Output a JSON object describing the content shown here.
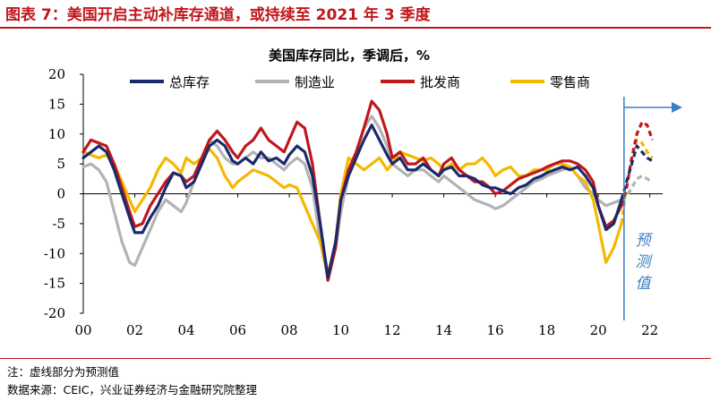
{
  "figure": {
    "title": "图表 7：美国开启主动补库存通道，或持续至 2021 年 3 季度",
    "note": "注：虚线部分为预测值",
    "source": "数据来源：CEIC，兴业证券经济与金融研究院整理"
  },
  "chart_data": {
    "type": "line",
    "title": "美国库存同比，季调后，%",
    "xlabel": "",
    "ylabel": "",
    "xlim": [
      2000,
      2022.5
    ],
    "ylim": [
      -20,
      20
    ],
    "yticks": [
      20,
      15,
      10,
      5,
      0,
      -5,
      -10,
      -15,
      -20
    ],
    "xticks": [
      {
        "value": 2000,
        "label": "00"
      },
      {
        "value": 2002,
        "label": "02"
      },
      {
        "value": 2004,
        "label": "04"
      },
      {
        "value": 2006,
        "label": "06"
      },
      {
        "value": 2008,
        "label": "08"
      },
      {
        "value": 2010,
        "label": "10"
      },
      {
        "value": 2012,
        "label": "12"
      },
      {
        "value": 2014,
        "label": "14"
      },
      {
        "value": 2016,
        "label": "16"
      },
      {
        "value": 2018,
        "label": "18"
      },
      {
        "value": 2020,
        "label": "20"
      },
      {
        "value": 2022,
        "label": "22"
      }
    ],
    "forecast_start": 2021.0,
    "annotation": "预测值",
    "legend_position": "top",
    "series": [
      {
        "name": "总库存",
        "color": "#1a2a6c",
        "x": [
          2000.0,
          2000.3,
          2000.6,
          2000.9,
          2001.2,
          2001.5,
          2001.8,
          2002.0,
          2002.3,
          2002.6,
          2002.9,
          2003.2,
          2003.5,
          2003.8,
          2004.0,
          2004.3,
          2004.6,
          2004.9,
          2005.2,
          2005.5,
          2005.8,
          2006.0,
          2006.3,
          2006.6,
          2006.9,
          2007.2,
          2007.5,
          2007.8,
          2008.0,
          2008.3,
          2008.6,
          2008.9,
          2009.2,
          2009.5,
          2009.8,
          2010.0,
          2010.3,
          2010.6,
          2010.9,
          2011.2,
          2011.5,
          2011.8,
          2012.0,
          2012.3,
          2012.6,
          2012.9,
          2013.2,
          2013.5,
          2013.8,
          2014.0,
          2014.3,
          2014.6,
          2014.9,
          2015.2,
          2015.5,
          2015.8,
          2016.0,
          2016.3,
          2016.6,
          2016.9,
          2017.2,
          2017.5,
          2017.8,
          2018.0,
          2018.3,
          2018.6,
          2018.9,
          2019.2,
          2019.5,
          2019.8,
          2020.0,
          2020.3,
          2020.6,
          2020.9
        ],
        "y": [
          6,
          7,
          8,
          7,
          4,
          0,
          -4,
          -6.5,
          -6.5,
          -4,
          -2,
          1,
          3.5,
          3,
          1,
          2,
          5,
          8,
          9,
          8,
          5.5,
          5,
          6,
          5,
          7,
          5.5,
          6,
          5,
          6.5,
          8,
          7,
          3,
          -5,
          -14,
          -8,
          -1,
          3,
          6,
          9,
          11.5,
          9,
          6.5,
          5,
          6,
          4,
          4,
          5,
          4,
          3,
          4,
          4.5,
          3,
          3,
          2.5,
          1.5,
          1,
          1,
          0.5,
          0,
          1,
          1.5,
          2.5,
          3,
          3.5,
          4,
          4.5,
          4,
          4.5,
          3,
          1,
          -2,
          -6,
          -5,
          -1
        ],
        "fx": [
          2020.9,
          2021.1,
          2021.3,
          2021.5,
          2021.7,
          2021.9,
          2022.1
        ],
        "fy": [
          -1,
          2,
          5,
          8,
          7,
          6,
          5.5
        ]
      },
      {
        "name": "制造业",
        "color": "#b3b3b3",
        "x": [
          2000.0,
          2000.3,
          2000.6,
          2000.9,
          2001.2,
          2001.5,
          2001.8,
          2002.0,
          2002.3,
          2002.6,
          2002.9,
          2003.2,
          2003.5,
          2003.8,
          2004.0,
          2004.3,
          2004.6,
          2004.9,
          2005.2,
          2005.5,
          2005.8,
          2006.0,
          2006.3,
          2006.6,
          2006.9,
          2007.2,
          2007.5,
          2007.8,
          2008.0,
          2008.3,
          2008.6,
          2008.9,
          2009.2,
          2009.5,
          2009.8,
          2010.0,
          2010.3,
          2010.6,
          2010.9,
          2011.2,
          2011.5,
          2011.8,
          2012.0,
          2012.3,
          2012.6,
          2012.9,
          2013.2,
          2013.5,
          2013.8,
          2014.0,
          2014.3,
          2014.6,
          2014.9,
          2015.2,
          2015.5,
          2015.8,
          2016.0,
          2016.3,
          2016.6,
          2016.9,
          2017.2,
          2017.5,
          2017.8,
          2018.0,
          2018.3,
          2018.6,
          2018.9,
          2019.2,
          2019.5,
          2019.8,
          2020.0,
          2020.3,
          2020.6,
          2020.9
        ],
        "y": [
          4.5,
          5,
          4,
          2,
          -3,
          -8,
          -11.5,
          -12,
          -9,
          -6,
          -3,
          -1,
          -2,
          -3,
          -1.5,
          2,
          6,
          9,
          8,
          6,
          5,
          5,
          6,
          7,
          6,
          6,
          5,
          4,
          5,
          6,
          5,
          1,
          -8,
          -14,
          -9,
          -3,
          3,
          7,
          11,
          13,
          11,
          8,
          5,
          4,
          3,
          4,
          4,
          3,
          2,
          3,
          2,
          1,
          0,
          -1,
          -1.5,
          -2,
          -2.5,
          -2,
          -1,
          0,
          1,
          2,
          2.5,
          3,
          3.5,
          4,
          4.5,
          3,
          1,
          0,
          -1,
          -2,
          -1.5,
          -1
        ],
        "fx": [
          2020.9,
          2021.1,
          2021.3,
          2021.5,
          2021.7,
          2021.9,
          2022.1
        ],
        "fy": [
          -1,
          -0.5,
          1,
          2.5,
          3,
          2.5,
          2
        ]
      },
      {
        "name": "批发商",
        "color": "#c0171d",
        "x": [
          2000.0,
          2000.3,
          2000.6,
          2000.9,
          2001.2,
          2001.5,
          2001.8,
          2002.0,
          2002.3,
          2002.6,
          2002.9,
          2003.2,
          2003.5,
          2003.8,
          2004.0,
          2004.3,
          2004.6,
          2004.9,
          2005.2,
          2005.5,
          2005.8,
          2006.0,
          2006.3,
          2006.6,
          2006.9,
          2007.2,
          2007.5,
          2007.8,
          2008.0,
          2008.3,
          2008.6,
          2008.9,
          2009.2,
          2009.5,
          2009.8,
          2010.0,
          2010.3,
          2010.6,
          2010.9,
          2011.2,
          2011.5,
          2011.8,
          2012.0,
          2012.3,
          2012.6,
          2012.9,
          2013.2,
          2013.5,
          2013.8,
          2014.0,
          2014.3,
          2014.6,
          2014.9,
          2015.2,
          2015.5,
          2015.8,
          2016.0,
          2016.3,
          2016.6,
          2016.9,
          2017.2,
          2017.5,
          2017.8,
          2018.0,
          2018.3,
          2018.6,
          2018.9,
          2019.2,
          2019.5,
          2019.8,
          2020.0,
          2020.3,
          2020.6,
          2020.9
        ],
        "y": [
          7,
          9,
          8.5,
          8,
          5,
          1,
          -3,
          -5.5,
          -5,
          -2,
          0,
          2,
          3.5,
          3,
          2,
          3,
          6,
          9,
          10.5,
          9,
          7,
          6,
          8,
          9,
          11,
          9,
          8,
          7,
          9,
          12,
          11,
          5,
          -5,
          -14.5,
          -9,
          -1,
          4,
          7,
          11,
          15.5,
          14,
          10,
          6,
          7,
          5,
          5,
          6,
          4,
          3,
          5,
          6,
          4,
          3,
          2,
          2,
          1,
          0,
          0.5,
          1.5,
          2.5,
          3,
          3.5,
          4,
          4.5,
          5,
          5.5,
          5.5,
          5,
          4,
          2,
          -2,
          -5.5,
          -4.5,
          -2
        ],
        "fx": [
          2020.9,
          2021.1,
          2021.3,
          2021.5,
          2021.7,
          2021.9,
          2022.1
        ],
        "fy": [
          -2,
          1,
          6,
          10,
          12,
          11.5,
          9
        ]
      },
      {
        "name": "零售商",
        "color": "#f5b800",
        "x": [
          2000.0,
          2000.3,
          2000.6,
          2000.9,
          2001.2,
          2001.5,
          2001.8,
          2002.0,
          2002.3,
          2002.6,
          2002.9,
          2003.2,
          2003.5,
          2003.8,
          2004.0,
          2004.3,
          2004.6,
          2004.9,
          2005.2,
          2005.5,
          2005.8,
          2006.0,
          2006.3,
          2006.6,
          2006.9,
          2007.2,
          2007.5,
          2007.8,
          2008.0,
          2008.3,
          2008.6,
          2008.9,
          2009.2,
          2009.5,
          2009.8,
          2010.0,
          2010.3,
          2010.6,
          2010.9,
          2011.2,
          2011.5,
          2011.8,
          2012.0,
          2012.3,
          2012.6,
          2012.9,
          2013.2,
          2013.5,
          2013.8,
          2014.0,
          2014.3,
          2014.6,
          2014.9,
          2015.2,
          2015.5,
          2015.8,
          2016.0,
          2016.3,
          2016.6,
          2016.9,
          2017.2,
          2017.5,
          2017.8,
          2018.0,
          2018.3,
          2018.6,
          2018.9,
          2019.2,
          2019.5,
          2019.8,
          2020.0,
          2020.3,
          2020.6,
          2020.9
        ],
        "y": [
          7,
          6.5,
          6,
          6.5,
          5,
          2,
          -1,
          -3,
          -1,
          1,
          4,
          6,
          5,
          3.5,
          6,
          5,
          6,
          7.5,
          6,
          3,
          1,
          2,
          3,
          4,
          3.5,
          3,
          2,
          1,
          1.5,
          1,
          -2,
          -5,
          -8,
          -13.5,
          -8,
          0,
          6,
          5,
          4,
          5,
          6,
          4,
          5,
          7,
          6.5,
          6,
          5.5,
          6,
          5,
          4,
          5,
          4,
          5,
          5,
          6,
          4.5,
          3,
          4,
          4.5,
          3,
          3,
          4,
          4,
          4,
          5,
          5,
          4.5,
          3,
          2,
          -1,
          -5,
          -11.5,
          -9,
          -5
        ],
        "fx": [
          2020.9,
          2021.1,
          2021.3,
          2021.5,
          2021.7,
          2021.9,
          2022.1
        ],
        "fy": [
          -5,
          1,
          6,
          9,
          8.5,
          7,
          6
        ]
      }
    ]
  }
}
